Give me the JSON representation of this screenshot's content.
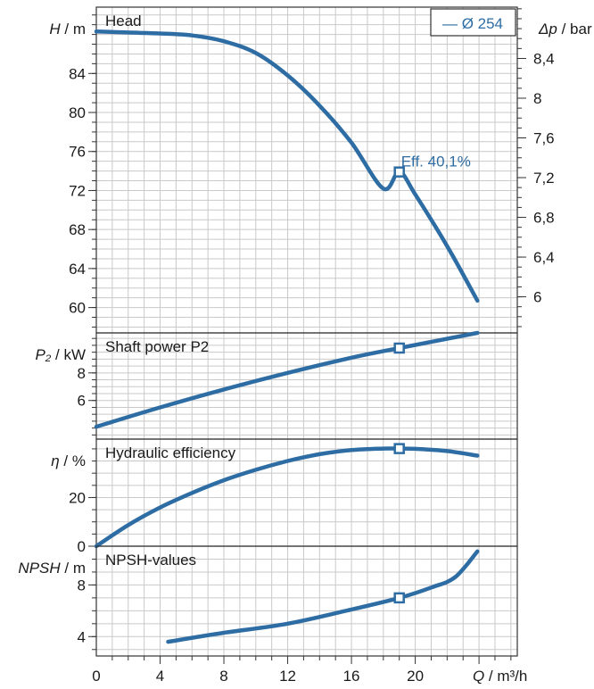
{
  "colors": {
    "curve": "#2e6da4",
    "grid": "#c9c9c9",
    "frame": "#333333"
  },
  "legend": {
    "label": "— Ø 254"
  },
  "x_axis": {
    "label_var": "Q",
    "label_unit": " / m³/h",
    "ticks": [
      0,
      4,
      8,
      12,
      16,
      20,
      24
    ],
    "tick_labels": [
      "0",
      "4",
      "8",
      "12",
      "16",
      "20"
    ]
  },
  "chart_data": [
    {
      "type": "line",
      "name": "head",
      "title": "Head",
      "ylabel_var": "H",
      "ylabel_unit": " / m",
      "ylim": [
        57.4,
        90.8
      ],
      "yticks": [
        60,
        64,
        68,
        72,
        76,
        80,
        84
      ],
      "ytick_labels": [
        "60",
        "64",
        "68",
        "72",
        "76",
        "80",
        "84"
      ],
      "right_axis": {
        "label_var": "Δp",
        "label_unit": " / bar",
        "conversion_factor": 0.0982,
        "ticks": [
          6,
          6.4,
          6.8,
          7.2,
          7.6,
          8,
          8.4
        ],
        "tick_labels": [
          "6",
          "6,4",
          "6,8",
          "7,2",
          "7,6",
          "8",
          "8,4"
        ]
      },
      "x": [
        0,
        2,
        4,
        6,
        8,
        10,
        12,
        14,
        16,
        18,
        19,
        20,
        22,
        23.9
      ],
      "y": [
        88.3,
        88.2,
        88.1,
        87.9,
        87.3,
        86.1,
        83.8,
        80.7,
        76.9,
        72.2,
        73.9,
        71.6,
        66.3,
        60.7
      ],
      "operating_point": {
        "x": 19,
        "y": 73.9,
        "label": "Eff.  40,1%"
      }
    },
    {
      "type": "line",
      "name": "shaft-power",
      "title": "Shaft power P2",
      "ylabel_var": "P₂",
      "ylabel_unit": " / kW",
      "ylim": [
        3.2,
        10.9
      ],
      "yticks": [
        6,
        8
      ],
      "ytick_labels": [
        "6",
        "8"
      ],
      "x": [
        0,
        4,
        8,
        12,
        16,
        19,
        23.9
      ],
      "y": [
        4.1,
        5.5,
        6.8,
        8.0,
        9.1,
        9.8,
        10.9
      ],
      "operating_point": {
        "x": 19,
        "y": 9.8
      }
    },
    {
      "type": "line",
      "name": "hydraulic-efficiency",
      "title": "Hydraulic efficiency",
      "ylabel_var": "η",
      "ylabel_unit": " / %",
      "ylim": [
        0,
        44
      ],
      "yticks": [
        0,
        20
      ],
      "ytick_labels": [
        "0",
        "20"
      ],
      "x": [
        0,
        2,
        4,
        6,
        8,
        10,
        12,
        14,
        16,
        18,
        19,
        20,
        22,
        23.9
      ],
      "y": [
        0,
        8.7,
        15.9,
        21.9,
        27.1,
        31.4,
        35.0,
        37.8,
        39.5,
        40.1,
        40.1,
        40.0,
        39.1,
        37.2
      ],
      "operating_point": {
        "x": 19,
        "y": 40.1
      }
    },
    {
      "type": "line",
      "name": "npsh",
      "title": "NPSH-values",
      "ylabel_var": "NPSH",
      "ylabel_unit": " / m",
      "ylim": [
        2.5,
        11
      ],
      "yticks": [
        4,
        8
      ],
      "ytick_labels": [
        "4",
        "8"
      ],
      "x": [
        4.5,
        8,
        12,
        16,
        19,
        21,
        22.5,
        23.9
      ],
      "y": [
        3.6,
        4.3,
        5.0,
        6.1,
        7.0,
        7.8,
        8.6,
        10.6
      ],
      "operating_point": {
        "x": 19,
        "y": 7.0
      }
    }
  ]
}
